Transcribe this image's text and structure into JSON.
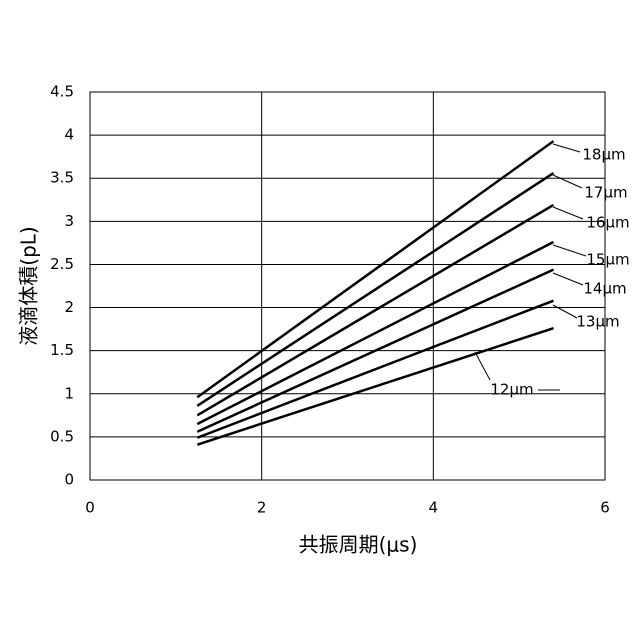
{
  "chart_data": {
    "type": "line",
    "x_label": "共振周期(μs)",
    "y_label": "液滴体積(pL)",
    "x": [
      1.25,
      5.4
    ],
    "series": [
      {
        "name": "12μm",
        "color": "#000000",
        "values": [
          0.41,
          1.76
        ]
      },
      {
        "name": "13μm",
        "color": "#000000",
        "values": [
          0.49,
          2.08
        ]
      },
      {
        "name": "14μm",
        "color": "#000000",
        "values": [
          0.56,
          2.44
        ]
      },
      {
        "name": "15μm",
        "color": "#000000",
        "values": [
          0.65,
          2.76
        ]
      },
      {
        "name": "16μm",
        "color": "#000000",
        "values": [
          0.75,
          3.19
        ]
      },
      {
        "name": "17μm",
        "color": "#000000",
        "values": [
          0.86,
          3.56
        ]
      },
      {
        "name": "18μm",
        "color": "#000000",
        "values": [
          0.96,
          3.93
        ]
      }
    ],
    "xlim": [
      0,
      6
    ],
    "xticks": [
      0,
      2,
      4,
      6
    ],
    "ylim": [
      0,
      4.5
    ],
    "yticks": [
      0,
      0.5,
      1,
      1.5,
      2,
      2.5,
      3,
      3.5,
      4,
      4.5
    ],
    "grid": true
  }
}
